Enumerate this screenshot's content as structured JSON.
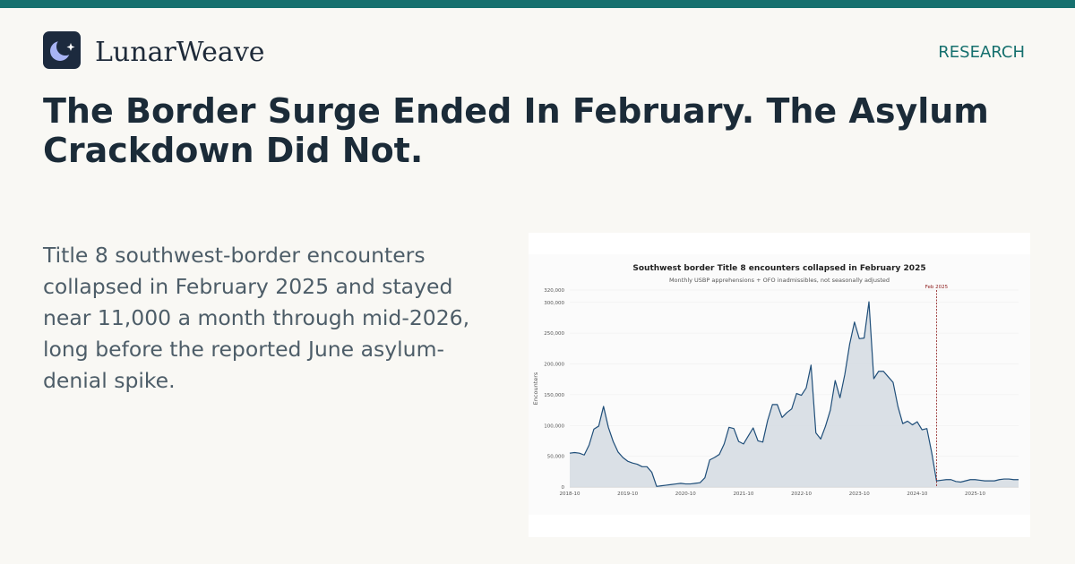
{
  "brand": {
    "name": "LunarWeave",
    "logo_icon": "moon-star-icon",
    "accent_color": "#16706e",
    "logo_bg": "#1c2a3e",
    "logo_moon_color": "#a8b4f4"
  },
  "header": {
    "section_label": "RESEARCH"
  },
  "article": {
    "headline": "The Border Surge Ended In February. The Asylum Crackdown Did Not.",
    "summary": "Title 8 southwest-border encounters collapsed in February 2025 and stayed near 11,000 a month through mid-2026, long before the reported June asylum-denial spike."
  },
  "chart_data": {
    "type": "area",
    "title": "Southwest border Title 8 encounters collapsed in February 2025",
    "subtitle": "Monthly USBP apprehensions + OFO inadmissibles, not seasonally adjusted",
    "xlabel": "",
    "ylabel": "Encounters",
    "x_ticks": [
      "2018-10",
      "2019-10",
      "2020-10",
      "2021-10",
      "2022-10",
      "2023-10",
      "2024-10",
      "2025-10"
    ],
    "y_ticks": [
      0,
      50000,
      100000,
      150000,
      200000,
      250000,
      300000,
      320000
    ],
    "y_tick_labels": [
      "0",
      "50,000",
      "100,000",
      "150,000",
      "200,000",
      "250,000",
      "300,000",
      "320,000"
    ],
    "ylim": [
      0,
      320000
    ],
    "x_start": "2018-10",
    "grid": true,
    "line_color": "#1f4e79",
    "fill_color": "#d6dde3",
    "annotation": {
      "label": "Feb 2025",
      "x": "2025-02",
      "color": "#8b1a1a"
    },
    "x": [
      "2018-10",
      "2018-11",
      "2018-12",
      "2019-01",
      "2019-02",
      "2019-03",
      "2019-04",
      "2019-05",
      "2019-06",
      "2019-07",
      "2019-08",
      "2019-09",
      "2019-10",
      "2019-11",
      "2019-12",
      "2020-01",
      "2020-02",
      "2020-03",
      "2020-04",
      "2020-05",
      "2020-06",
      "2020-07",
      "2020-08",
      "2020-09",
      "2020-10",
      "2020-11",
      "2020-12",
      "2021-01",
      "2021-02",
      "2021-03",
      "2021-04",
      "2021-05",
      "2021-06",
      "2021-07",
      "2021-08",
      "2021-09",
      "2021-10",
      "2021-11",
      "2021-12",
      "2022-01",
      "2022-02",
      "2022-03",
      "2022-04",
      "2022-05",
      "2022-06",
      "2022-07",
      "2022-08",
      "2022-09",
      "2022-10",
      "2022-11",
      "2022-12",
      "2023-01",
      "2023-02",
      "2023-03",
      "2023-04",
      "2023-05",
      "2023-06",
      "2023-07",
      "2023-08",
      "2023-09",
      "2023-10",
      "2023-11",
      "2023-12",
      "2024-01",
      "2024-02",
      "2024-03",
      "2024-04",
      "2024-05",
      "2024-06",
      "2024-07",
      "2024-08",
      "2024-09",
      "2024-10",
      "2024-11",
      "2024-12",
      "2025-01",
      "2025-02",
      "2025-03",
      "2025-04",
      "2025-05",
      "2025-06",
      "2025-07",
      "2025-08",
      "2025-09",
      "2025-10",
      "2025-11",
      "2025-12",
      "2026-01",
      "2026-02",
      "2026-03",
      "2026-04",
      "2026-05",
      "2026-06",
      "2026-07"
    ],
    "series": [
      {
        "values": [
          55000,
          56000,
          55000,
          52000,
          68000,
          94000,
          99000,
          131000,
          97000,
          74000,
          57000,
          48000,
          42000,
          39000,
          37000,
          33000,
          33000,
          24000,
          1000,
          2000,
          3000,
          4000,
          5000,
          6000,
          5000,
          5000,
          6000,
          7000,
          15000,
          44000,
          48000,
          53000,
          70000,
          97000,
          95000,
          74000,
          70000,
          83000,
          96000,
          75000,
          73000,
          108000,
          134000,
          134000,
          113000,
          121000,
          127000,
          152000,
          149000,
          161000,
          198000,
          88000,
          78000,
          99000,
          125000,
          173000,
          145000,
          183000,
          232000,
          268000,
          241000,
          242000,
          301000,
          176000,
          188000,
          188000,
          179000,
          170000,
          131000,
          103000,
          107000,
          101000,
          106000,
          93000,
          95000,
          56000,
          10000,
          11000,
          12000,
          12000,
          9000,
          8000,
          10000,
          12000,
          12000,
          11000,
          10000,
          10000,
          10000,
          12000,
          13000,
          13000,
          12000,
          12000
        ]
      }
    ]
  }
}
